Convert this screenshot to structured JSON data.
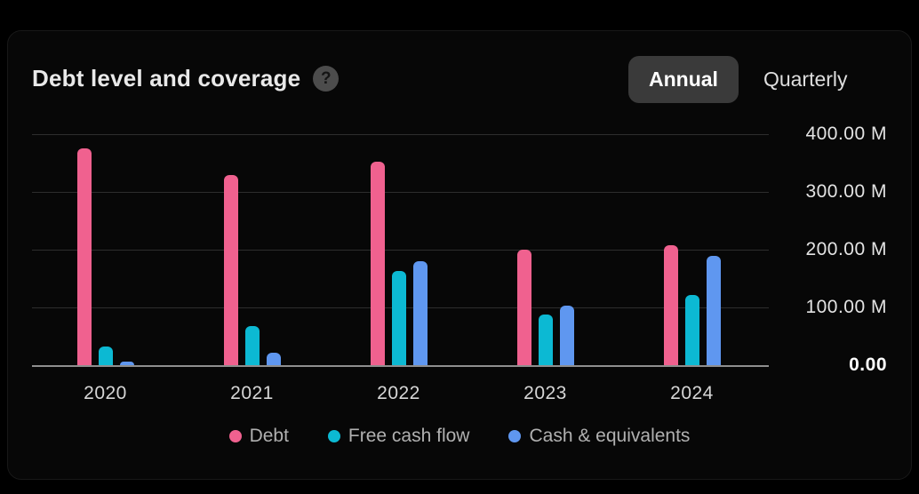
{
  "card": {
    "title": "Debt level and coverage",
    "help_icon": "?",
    "period_toggle": {
      "options": [
        "Annual",
        "Quarterly"
      ],
      "selected": "Annual"
    }
  },
  "chart_data": {
    "type": "bar",
    "title": "Debt level and coverage",
    "categories": [
      "2020",
      "2021",
      "2022",
      "2023",
      "2024"
    ],
    "series": [
      {
        "name": "Debt",
        "color": "#f0618f",
        "values": [
          375,
          330,
          352,
          200,
          208
        ]
      },
      {
        "name": "Free cash flow",
        "color": "#0cb9d3",
        "values": [
          33,
          67,
          163,
          87,
          122
        ]
      },
      {
        "name": "Cash & equivalents",
        "color": "#5f97f0",
        "values": [
          6,
          22,
          180,
          103,
          190
        ]
      }
    ],
    "unit": "M",
    "ylim": [
      0,
      400
    ],
    "yticks": [
      {
        "value": 400,
        "label": "400.00 M"
      },
      {
        "value": 300,
        "label": "300.00 M"
      },
      {
        "value": 200,
        "label": "200.00 M"
      },
      {
        "value": 100,
        "label": "100.00 M"
      },
      {
        "value": 0,
        "label": "0.00"
      }
    ],
    "grid": true,
    "legend_position": "bottom"
  },
  "colors": {
    "background": "#000000",
    "card_background": "#070707",
    "gridline": "#2d2d2d",
    "axis_line": "#8e8e8e",
    "selected_pill_background": "#3a3a3a",
    "debt": "#f0618f",
    "free_cash_flow": "#0cb9d3",
    "cash_equivalents": "#5f97f0"
  }
}
